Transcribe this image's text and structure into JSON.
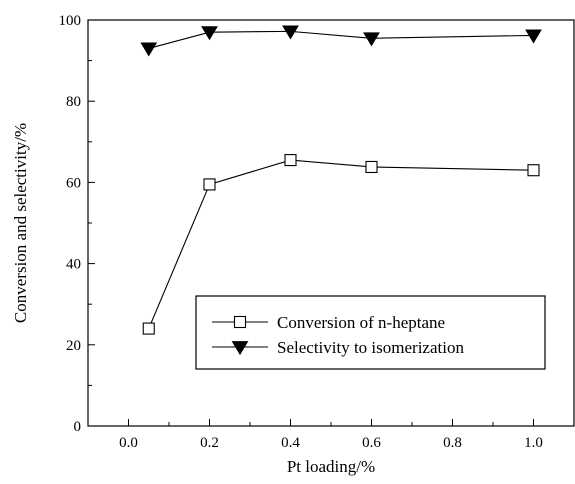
{
  "chart_data": {
    "type": "line",
    "xlabel": "Pt loading/%",
    "ylabel": "Conversion and selectivity/%",
    "xlim": [
      -0.1,
      1.1
    ],
    "ylim": [
      0,
      100
    ],
    "xticks": [
      "0.0",
      "0.2",
      "0.4",
      "0.6",
      "0.8",
      "1.0"
    ],
    "yticks": [
      "0",
      "20",
      "40",
      "60",
      "80",
      "100"
    ],
    "grid": false,
    "legend_position": "bottom-right",
    "x": [
      0.05,
      0.2,
      0.4,
      0.6,
      1.0
    ],
    "series": [
      {
        "name": "Conversion of n-heptane",
        "marker": "open-square",
        "color": "#000000",
        "values": [
          24,
          59.5,
          65.5,
          63.8,
          63
        ]
      },
      {
        "name": "Selectivity to isomerization",
        "marker": "filled-down-triangle",
        "color": "#000000",
        "values": [
          93,
          97,
          97.2,
          95.5,
          96.2
        ]
      }
    ]
  }
}
